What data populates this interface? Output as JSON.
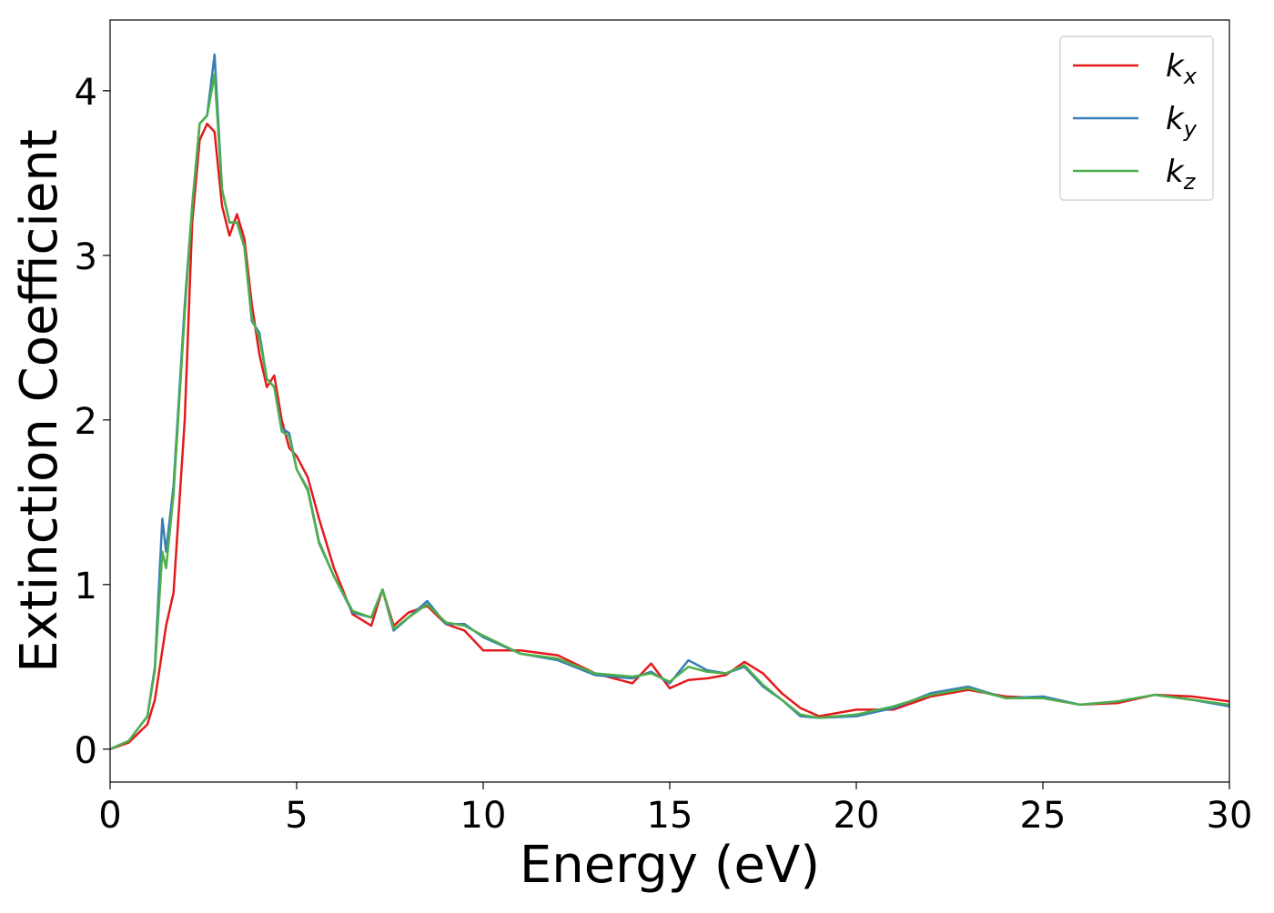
{
  "chart_data": {
    "type": "line",
    "x_label": "Energy (eV)",
    "y_label": "Extinction Coefficient",
    "x": [
      0,
      0.5,
      1,
      1.2,
      1.4,
      1.5,
      1.7,
      2,
      2.2,
      2.4,
      2.6,
      2.8,
      3,
      3.2,
      3.4,
      3.6,
      3.8,
      4,
      4.2,
      4.4,
      4.6,
      4.8,
      5,
      5.3,
      5.6,
      6,
      6.5,
      7,
      7.3,
      7.6,
      8,
      8.5,
      9,
      9.5,
      10,
      11,
      12,
      13,
      14,
      14.5,
      15,
      15.5,
      16,
      16.5,
      17,
      17.5,
      18,
      18.5,
      19,
      20,
      21,
      22,
      23,
      24,
      25,
      26,
      27,
      28,
      29,
      30
    ],
    "series": [
      {
        "name": "kx",
        "color": "#e41a1c",
        "values": [
          0,
          0.04,
          0.15,
          0.3,
          0.6,
          0.75,
          0.95,
          2.0,
          3.2,
          3.7,
          3.8,
          3.75,
          3.3,
          3.12,
          3.25,
          3.1,
          2.7,
          2.4,
          2.2,
          2.27,
          2.0,
          1.83,
          1.78,
          1.65,
          1.4,
          1.1,
          0.82,
          0.75,
          0.97,
          0.75,
          0.83,
          0.87,
          0.76,
          0.72,
          0.6,
          0.6,
          0.57,
          0.46,
          0.4,
          0.52,
          0.37,
          0.42,
          0.43,
          0.45,
          0.53,
          0.46,
          0.34,
          0.25,
          0.2,
          0.24,
          0.24,
          0.32,
          0.36,
          0.32,
          0.31,
          0.27,
          0.28,
          0.33,
          0.32,
          0.29
        ]
      },
      {
        "name": "ky",
        "color": "#377eb8",
        "values": [
          0,
          0.05,
          0.2,
          0.5,
          1.4,
          1.2,
          1.6,
          2.7,
          3.3,
          3.8,
          3.85,
          4.22,
          3.4,
          3.2,
          3.2,
          3.05,
          2.6,
          2.53,
          2.25,
          2.2,
          1.95,
          1.92,
          1.7,
          1.58,
          1.26,
          1.05,
          0.83,
          0.8,
          0.97,
          0.72,
          0.8,
          0.9,
          0.76,
          0.76,
          0.68,
          0.58,
          0.54,
          0.45,
          0.43,
          0.47,
          0.4,
          0.54,
          0.48,
          0.46,
          0.5,
          0.38,
          0.3,
          0.2,
          0.19,
          0.2,
          0.25,
          0.34,
          0.38,
          0.31,
          0.32,
          0.27,
          0.29,
          0.33,
          0.3,
          0.26
        ]
      },
      {
        "name": "kz",
        "color": "#4daf4a",
        "values": [
          0,
          0.05,
          0.2,
          0.48,
          1.2,
          1.1,
          1.55,
          2.65,
          3.3,
          3.8,
          3.85,
          4.1,
          3.4,
          3.2,
          3.2,
          3.05,
          2.62,
          2.5,
          2.25,
          2.2,
          1.93,
          1.9,
          1.7,
          1.57,
          1.25,
          1.05,
          0.84,
          0.8,
          0.97,
          0.73,
          0.8,
          0.88,
          0.77,
          0.75,
          0.69,
          0.58,
          0.55,
          0.46,
          0.44,
          0.46,
          0.41,
          0.5,
          0.47,
          0.46,
          0.51,
          0.39,
          0.3,
          0.21,
          0.19,
          0.21,
          0.26,
          0.33,
          0.37,
          0.31,
          0.31,
          0.27,
          0.29,
          0.33,
          0.3,
          0.27
        ]
      }
    ],
    "xlim": [
      0,
      30
    ],
    "ylim": [
      -0.2,
      4.43
    ],
    "xticks": [
      0,
      5,
      10,
      15,
      20,
      25,
      30
    ],
    "yticks": [
      0,
      1,
      2,
      3,
      4
    ],
    "legend": "upper right"
  }
}
